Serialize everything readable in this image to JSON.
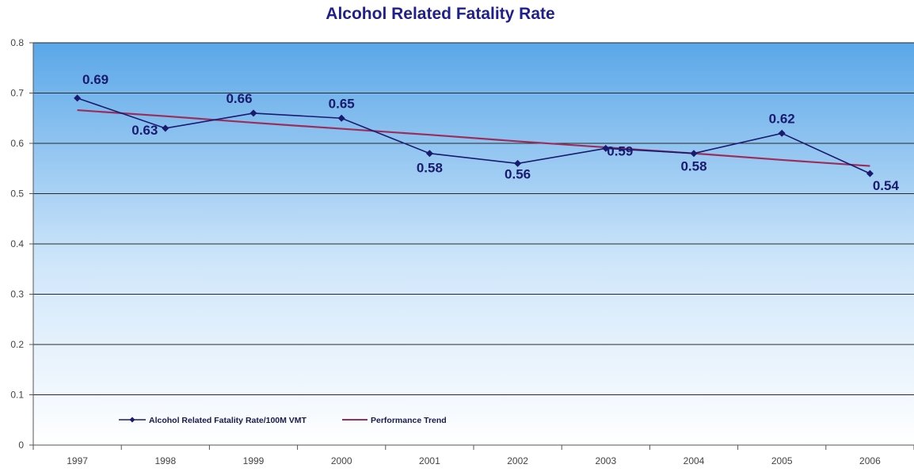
{
  "chart_data": {
    "type": "line",
    "title": "Alcohol Related Fatality Rate",
    "xlabel": "",
    "ylabel": "",
    "categories": [
      "1997",
      "1998",
      "1999",
      "2000",
      "2001",
      "2002",
      "2003",
      "2004",
      "2005",
      "2006"
    ],
    "ylim": [
      0,
      0.8
    ],
    "yticks": [
      "0",
      "0.1",
      "0.2",
      "0.3",
      "0.4",
      "0.5",
      "0.6",
      "0.7",
      "0.8"
    ],
    "grid": true,
    "legend_position": "bottom-left",
    "series": [
      {
        "name": "Alcohol Related Fatality Rate/100M VMT",
        "values": [
          0.69,
          0.63,
          0.66,
          0.65,
          0.58,
          0.56,
          0.59,
          0.58,
          0.62,
          0.54
        ],
        "labels": [
          "0.69",
          "0.63",
          "0.66",
          "0.65",
          "0.58",
          "0.56",
          "0.59",
          "0.58",
          "0.62",
          "0.54"
        ],
        "color": "#1a1a6e",
        "marker": "diamond"
      },
      {
        "name": "Performance Trend",
        "values": [
          0.666,
          0.654,
          0.641,
          0.629,
          0.617,
          0.604,
          0.592,
          0.58,
          0.567,
          0.555
        ],
        "color": "#9b2d5a"
      }
    ]
  },
  "colors": {
    "title": "#1f1f8f",
    "plot_top": "#5aa7e8",
    "plot_bottom": "#ffffff",
    "gridline": "#2a2a2a"
  }
}
